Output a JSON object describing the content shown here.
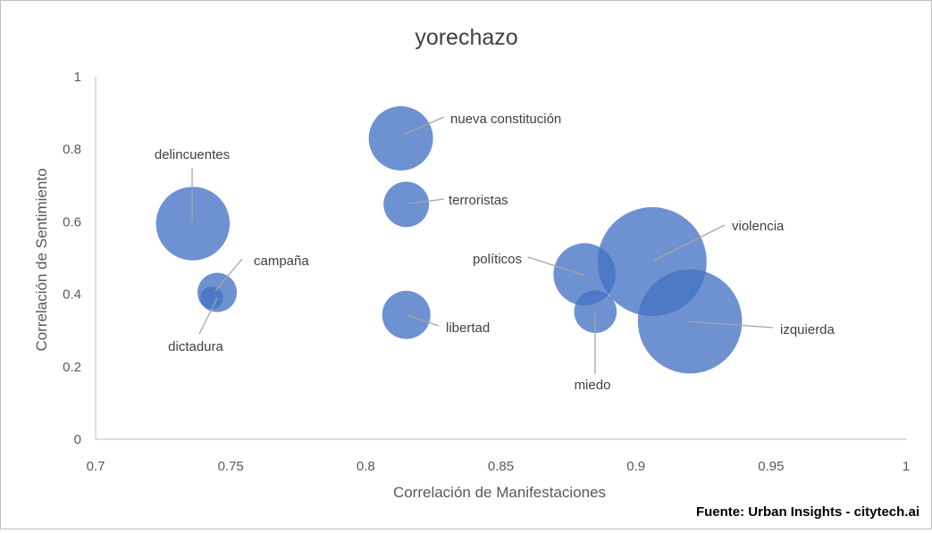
{
  "chart_data": {
    "type": "bubble",
    "title": "yorechazo",
    "xlabel": "Correlación de Manifestaciones",
    "ylabel": "Correlación de Sentimiento",
    "xlim": [
      0.7,
      1
    ],
    "ylim": [
      0,
      1
    ],
    "x_ticks": [
      "0.7",
      "0.75",
      "0.8",
      "0.85",
      "0.9",
      "0.95",
      "1"
    ],
    "y_ticks": [
      "0",
      "0.2",
      "0.4",
      "0.6",
      "0.8",
      "1"
    ],
    "grid": false,
    "legend": "none",
    "bubble_color": "#4472c4",
    "points": [
      {
        "label": "delincuentes",
        "x": 0.736,
        "y": 0.595,
        "size": 0.42
      },
      {
        "label": "campaña",
        "x": 0.745,
        "y": 0.405,
        "size": 0.12
      },
      {
        "label": "dictadura",
        "x": 0.743,
        "y": 0.39,
        "size": 0.04
      },
      {
        "label": "nueva constitución",
        "x": 0.813,
        "y": 0.83,
        "size": 0.32
      },
      {
        "label": "terroristas",
        "x": 0.815,
        "y": 0.648,
        "size": 0.16
      },
      {
        "label": "libertad",
        "x": 0.815,
        "y": 0.343,
        "size": 0.18
      },
      {
        "label": "políticos",
        "x": 0.881,
        "y": 0.455,
        "size": 0.3
      },
      {
        "label": "miedo",
        "x": 0.885,
        "y": 0.352,
        "size": 0.14
      },
      {
        "label": "violencia",
        "x": 0.906,
        "y": 0.49,
        "size": 0.92
      },
      {
        "label": "izquierda",
        "x": 0.92,
        "y": 0.325,
        "size": 0.84
      }
    ]
  },
  "source": "Fuente: Urban Insights - citytech.ai"
}
